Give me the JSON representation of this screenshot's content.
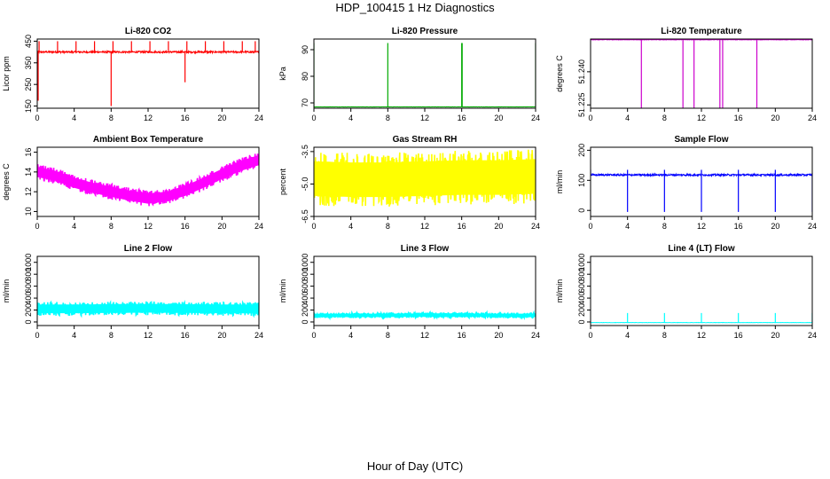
{
  "page": {
    "title": "HDP_100415  1 Hz Diagnostics",
    "xlabel": "Hour of Day (UTC)"
  },
  "chart_data": [
    {
      "type": "line",
      "title": "Li-820 CO2",
      "ylabel": "Licor ppm",
      "color": "#ff0000",
      "xlim": [
        0,
        24
      ],
      "ylim": [
        140,
        460
      ],
      "xticks": [
        "0",
        "4",
        "8",
        "12",
        "16",
        "20",
        "24"
      ],
      "yticks": [
        {
          "v": 150,
          "label": "150"
        },
        {
          "v": 250,
          "label": "250"
        },
        {
          "v": 350,
          "label": "350"
        },
        {
          "v": 450,
          "label": "450"
        }
      ],
      "series": [
        {
          "pattern": "baseline-spikes",
          "base": 400,
          "noise": 8,
          "spikes_up": [
            0.2,
            2.2,
            4.2,
            6.2,
            8.2,
            10.2,
            12.2,
            14.2,
            16.2,
            18.2,
            20.2,
            22.2,
            23.6
          ],
          "spike_up_to": 450,
          "spikes_down": [
            0.1,
            8.0,
            16.0
          ],
          "spike_down_to": [
            175,
            150,
            260
          ]
        }
      ]
    },
    {
      "type": "line",
      "title": "Li-820 Pressure",
      "ylabel": "kPa",
      "color": "#00aa00",
      "xlim": [
        0,
        24
      ],
      "ylim": [
        68,
        94
      ],
      "xticks": [
        "0",
        "4",
        "8",
        "12",
        "16",
        "20",
        "24"
      ],
      "yticks": [
        {
          "v": 70,
          "label": "70"
        },
        {
          "v": 80,
          "label": "80"
        },
        {
          "v": 90,
          "label": "90"
        }
      ],
      "series": [
        {
          "pattern": "baseline-spikes",
          "base": 68.5,
          "noise": 0.1,
          "spikes_up": [
            0.0,
            8.0,
            16.0,
            16.05,
            24.0
          ],
          "spike_up_to": 92.5,
          "spikes_down": [],
          "spike_down_to": []
        }
      ]
    },
    {
      "type": "line",
      "title": "Li-820 Temperature",
      "ylabel": "degrees C",
      "color": "#cc00cc",
      "xlim": [
        0,
        24
      ],
      "ylim": [
        51.2235,
        51.2548
      ],
      "xticks": [
        "0",
        "4",
        "8",
        "12",
        "16",
        "20",
        "24"
      ],
      "yticks": [
        {
          "v": 51.225,
          "label": "51.225"
        },
        {
          "v": 51.24,
          "label": "51.240"
        }
      ],
      "series": [
        {
          "pattern": "baseline-spikes",
          "base": 51.2545,
          "noise": 0.0002,
          "spikes_up": [],
          "spike_up_to": 51.2548,
          "spikes_down": [
            5.5,
            10.0,
            11.2,
            14.0,
            14.3,
            18.0
          ],
          "spike_down_to": [
            51.2235,
            51.2235,
            51.2235,
            51.2235,
            51.2235,
            51.2235
          ]
        }
      ]
    },
    {
      "type": "line",
      "title": "Ambient Box Temperature",
      "ylabel": "degrees C",
      "color": "#ff00ff",
      "xlim": [
        0,
        24
      ],
      "ylim": [
        9.5,
        16.5
      ],
      "xticks": [
        "0",
        "4",
        "8",
        "12",
        "16",
        "20",
        "24"
      ],
      "yticks": [
        {
          "v": 10,
          "label": "10"
        },
        {
          "v": 12,
          "label": "12"
        },
        {
          "v": 14,
          "label": "14"
        },
        {
          "v": 16,
          "label": "16"
        }
      ],
      "series": [
        {
          "pattern": "band",
          "band": 1.6,
          "x": [
            0,
            2,
            4,
            6,
            8,
            10,
            12,
            14,
            16,
            18,
            20,
            22,
            24
          ],
          "y": [
            14.0,
            13.6,
            12.9,
            12.4,
            12.0,
            11.6,
            11.3,
            11.5,
            12.1,
            12.9,
            13.8,
            14.6,
            15.2
          ]
        }
      ]
    },
    {
      "type": "line",
      "title": "Gas Stream RH",
      "ylabel": "percent",
      "color": "#ffff00",
      "xlim": [
        0,
        24
      ],
      "ylim": [
        -6.5,
        -3.3
      ],
      "xticks": [
        "0",
        "4",
        "8",
        "12",
        "16",
        "20",
        "24"
      ],
      "yticks": [
        {
          "v": -3.5,
          "label": "-3.5"
        },
        {
          "v": -5.0,
          "label": "-5.0"
        },
        {
          "v": -6.5,
          "label": "-6.5"
        }
      ],
      "series": [
        {
          "pattern": "band",
          "band": 2.5,
          "x": [
            0,
            4,
            8,
            12,
            16,
            20,
            24
          ],
          "y": [
            -4.75,
            -4.8,
            -4.8,
            -4.75,
            -4.7,
            -4.7,
            -4.65
          ]
        }
      ]
    },
    {
      "type": "line",
      "title": "Sample Flow",
      "ylabel": "ml/min",
      "color": "#0000ff",
      "xlim": [
        0,
        24
      ],
      "ylim": [
        -20,
        210
      ],
      "xticks": [
        "0",
        "4",
        "8",
        "12",
        "16",
        "20",
        "24"
      ],
      "yticks": [
        {
          "v": 0,
          "label": "0"
        },
        {
          "v": 100,
          "label": "100"
        },
        {
          "v": 200,
          "label": "200"
        }
      ],
      "series": [
        {
          "pattern": "baseline-spikes",
          "base": 118,
          "noise": 6,
          "spikes_up": [
            0.0,
            4.0,
            8.0,
            12.0,
            16.0,
            20.0
          ],
          "spike_up_to": 135,
          "spikes_down": [
            4.0,
            8.0,
            12.0,
            16.0,
            20.0,
            24.0
          ],
          "spike_down_to": [
            -5,
            -5,
            -5,
            -5,
            -5,
            -5
          ]
        }
      ]
    },
    {
      "type": "line",
      "title": "Line 2 Flow",
      "ylabel": "ml/min",
      "color": "#00ffff",
      "xlim": [
        0,
        24
      ],
      "ylim": [
        -60,
        1100
      ],
      "xticks": [
        "0",
        "4",
        "8",
        "12",
        "16",
        "20",
        "24"
      ],
      "yticks": [
        {
          "v": 0,
          "label": "0"
        },
        {
          "v": 200,
          "label": "200"
        },
        {
          "v": 400,
          "label": "400"
        },
        {
          "v": 600,
          "label": "600"
        },
        {
          "v": 800,
          "label": "800"
        },
        {
          "v": 1000,
          "label": "1000"
        }
      ],
      "series": [
        {
          "pattern": "band",
          "band": 230,
          "x": [
            0,
            4,
            8,
            12,
            16,
            20,
            24
          ],
          "y": [
            220,
            220,
            225,
            230,
            225,
            220,
            215
          ]
        }
      ]
    },
    {
      "type": "line",
      "title": "Line 3 Flow",
      "ylabel": "ml/min",
      "color": "#00ffff",
      "xlim": [
        0,
        24
      ],
      "ylim": [
        -60,
        1100
      ],
      "xticks": [
        "0",
        "4",
        "8",
        "12",
        "16",
        "20",
        "24"
      ],
      "yticks": [
        {
          "v": 0,
          "label": "0"
        },
        {
          "v": 200,
          "label": "200"
        },
        {
          "v": 400,
          "label": "400"
        },
        {
          "v": 600,
          "label": "600"
        },
        {
          "v": 800,
          "label": "800"
        },
        {
          "v": 1000,
          "label": "1000"
        }
      ],
      "series": [
        {
          "pattern": "band",
          "band": 90,
          "x": [
            0,
            4,
            8,
            12,
            16,
            20,
            24
          ],
          "y": [
            110,
            110,
            112,
            115,
            115,
            112,
            110
          ]
        }
      ]
    },
    {
      "type": "line",
      "title": "Line 4 (LT) Flow",
      "ylabel": "ml/min",
      "color": "#00ffff",
      "xlim": [
        0,
        24
      ],
      "ylim": [
        -60,
        1100
      ],
      "xticks": [
        "0",
        "4",
        "8",
        "12",
        "16",
        "20",
        "24"
      ],
      "yticks": [
        {
          "v": 0,
          "label": "0"
        },
        {
          "v": 200,
          "label": "200"
        },
        {
          "v": 400,
          "label": "400"
        },
        {
          "v": 600,
          "label": "600"
        },
        {
          "v": 800,
          "label": "800"
        },
        {
          "v": 1000,
          "label": "1000"
        }
      ],
      "series": [
        {
          "pattern": "baseline-spikes",
          "base": -10,
          "noise": 4,
          "spikes_up": [
            4.0,
            8.0,
            12.0,
            16.0,
            20.0,
            24.0
          ],
          "spike_up_to": 150,
          "spikes_down": [],
          "spike_down_to": []
        }
      ]
    }
  ]
}
